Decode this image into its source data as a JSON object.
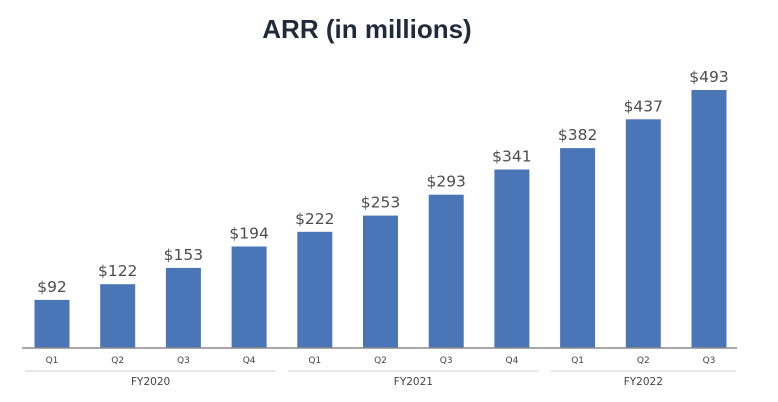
{
  "chart_data": {
    "type": "bar",
    "title": "ARR (in millions)",
    "xlabel": "",
    "ylabel": "",
    "ylim": [
      0,
      493
    ],
    "grid": false,
    "legend": "none",
    "categories": [
      "Q1",
      "Q2",
      "Q3",
      "Q4",
      "Q1",
      "Q2",
      "Q3",
      "Q4",
      "Q1",
      "Q2",
      "Q3"
    ],
    "values": [
      92,
      122,
      153,
      194,
      222,
      253,
      293,
      341,
      382,
      437,
      493
    ],
    "value_labels": [
      "$92",
      "$122",
      "$153",
      "$194",
      "$222",
      "$253",
      "$293",
      "$341",
      "$382",
      "$437",
      "$493"
    ],
    "groups": [
      {
        "label": "FY2020",
        "count": 4
      },
      {
        "label": "FY2021",
        "count": 4
      },
      {
        "label": "FY2022",
        "count": 3
      }
    ],
    "colors": {
      "bar": "#4a76b8",
      "axis": "#8a8a8a",
      "title": "#1f2a3a",
      "label": "#4d4d4d"
    }
  }
}
